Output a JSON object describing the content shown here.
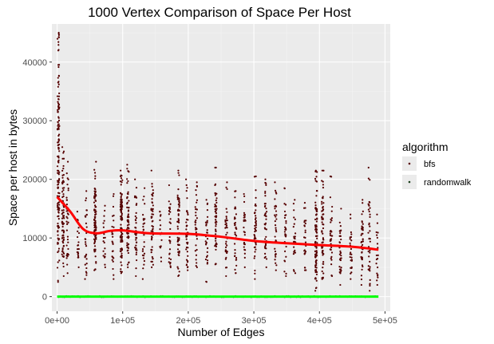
{
  "chart_data": {
    "type": "scatter",
    "title": "1000  Vertex Comparison of Space Per Host",
    "xlabel": "Number of Edges",
    "ylabel": "Space per host in bytes",
    "xlim": [
      -8000,
      508000
    ],
    "ylim": [
      -2500,
      46500
    ],
    "x_ticks": [
      {
        "value": 0,
        "label": "0e+00"
      },
      {
        "value": 100000,
        "label": "1e+05"
      },
      {
        "value": 200000,
        "label": "2e+05"
      },
      {
        "value": 300000,
        "label": "3e+05"
      },
      {
        "value": 400000,
        "label": "4e+05"
      },
      {
        "value": 500000,
        "label": "5e+05"
      }
    ],
    "y_ticks": [
      {
        "value": 0,
        "label": "0"
      },
      {
        "value": 10000,
        "label": "10000"
      },
      {
        "value": 20000,
        "label": "20000"
      },
      {
        "value": 30000,
        "label": "30000"
      },
      {
        "value": 40000,
        "label": "40000"
      }
    ],
    "grid": true,
    "background": "#ebebeb",
    "legend": {
      "title": "algorithm",
      "position": "right",
      "entries": [
        {
          "label": "bfs",
          "color": "#550000"
        },
        {
          "label": "randomwalk",
          "color": "#1a3d1a"
        }
      ]
    },
    "series": [
      {
        "name": "bfs",
        "color": "#550000",
        "point_columns": [
          {
            "x": 2000,
            "y_min": 2500,
            "y_max": 45000,
            "n": 150
          },
          {
            "x": 9000,
            "y_min": 3500,
            "y_max": 25500,
            "n": 80
          },
          {
            "x": 16000,
            "y_min": 4000,
            "y_max": 23000,
            "n": 40
          },
          {
            "x": 32000,
            "y_min": 5000,
            "y_max": 14500,
            "n": 20
          },
          {
            "x": 44000,
            "y_min": 3000,
            "y_max": 18000,
            "n": 30
          },
          {
            "x": 58000,
            "y_min": 4500,
            "y_max": 23000,
            "n": 90
          },
          {
            "x": 72000,
            "y_min": 5000,
            "y_max": 15500,
            "n": 20
          },
          {
            "x": 85000,
            "y_min": 3000,
            "y_max": 17500,
            "n": 25
          },
          {
            "x": 98000,
            "y_min": 4000,
            "y_max": 21500,
            "n": 100
          },
          {
            "x": 108000,
            "y_min": 5000,
            "y_max": 22500,
            "n": 60
          },
          {
            "x": 120000,
            "y_min": 3500,
            "y_max": 20000,
            "n": 40
          },
          {
            "x": 132000,
            "y_min": 3000,
            "y_max": 18500,
            "n": 30
          },
          {
            "x": 145000,
            "y_min": 5000,
            "y_max": 21500,
            "n": 50
          },
          {
            "x": 158000,
            "y_min": 6000,
            "y_max": 14500,
            "n": 15
          },
          {
            "x": 172000,
            "y_min": 5000,
            "y_max": 19000,
            "n": 30
          },
          {
            "x": 185000,
            "y_min": 3500,
            "y_max": 21500,
            "n": 60
          },
          {
            "x": 198000,
            "y_min": 4500,
            "y_max": 20000,
            "n": 40
          },
          {
            "x": 212000,
            "y_min": 5000,
            "y_max": 19500,
            "n": 35
          },
          {
            "x": 228000,
            "y_min": 2500,
            "y_max": 16500,
            "n": 30
          },
          {
            "x": 242000,
            "y_min": 5500,
            "y_max": 22000,
            "n": 50
          },
          {
            "x": 258000,
            "y_min": 3500,
            "y_max": 19500,
            "n": 35
          },
          {
            "x": 272000,
            "y_min": 4000,
            "y_max": 18000,
            "n": 35
          },
          {
            "x": 286000,
            "y_min": 5000,
            "y_max": 17500,
            "n": 30
          },
          {
            "x": 302000,
            "y_min": 3000,
            "y_max": 20500,
            "n": 45
          },
          {
            "x": 318000,
            "y_min": 5000,
            "y_max": 20000,
            "n": 40
          },
          {
            "x": 333000,
            "y_min": 4500,
            "y_max": 19500,
            "n": 35
          },
          {
            "x": 348000,
            "y_min": 3500,
            "y_max": 18500,
            "n": 30
          },
          {
            "x": 362000,
            "y_min": 4000,
            "y_max": 16500,
            "n": 25
          },
          {
            "x": 378000,
            "y_min": 4500,
            "y_max": 16000,
            "n": 25
          },
          {
            "x": 395000,
            "y_min": 1000,
            "y_max": 21500,
            "n": 90
          },
          {
            "x": 405000,
            "y_min": 3000,
            "y_max": 21500,
            "n": 60
          },
          {
            "x": 418000,
            "y_min": 3500,
            "y_max": 20500,
            "n": 35
          },
          {
            "x": 432000,
            "y_min": 2000,
            "y_max": 15000,
            "n": 35
          },
          {
            "x": 448000,
            "y_min": 3000,
            "y_max": 14000,
            "n": 25
          },
          {
            "x": 465000,
            "y_min": 2000,
            "y_max": 16500,
            "n": 40
          },
          {
            "x": 476000,
            "y_min": 1000,
            "y_max": 22000,
            "n": 40
          },
          {
            "x": 488000,
            "y_min": 2000,
            "y_max": 14000,
            "n": 20
          }
        ]
      },
      {
        "name": "randomwalk",
        "color": "#1a3d1a",
        "y": 0,
        "x_range": [
          2000,
          490000
        ]
      }
    ],
    "smooth_bfs": {
      "color": "#ff0000",
      "x": [
        0,
        20000,
        40000,
        60000,
        80000,
        100000,
        140000,
        200000,
        250000,
        300000,
        350000,
        400000,
        450000,
        490000
      ],
      "y": [
        17000,
        14500,
        11500,
        10800,
        11200,
        11300,
        10800,
        10700,
        10200,
        9500,
        9100,
        8800,
        8500,
        8000
      ]
    },
    "smooth_randomwalk": {
      "color": "#00ff00",
      "x": [
        0,
        490000
      ],
      "y": [
        0,
        0
      ]
    }
  }
}
